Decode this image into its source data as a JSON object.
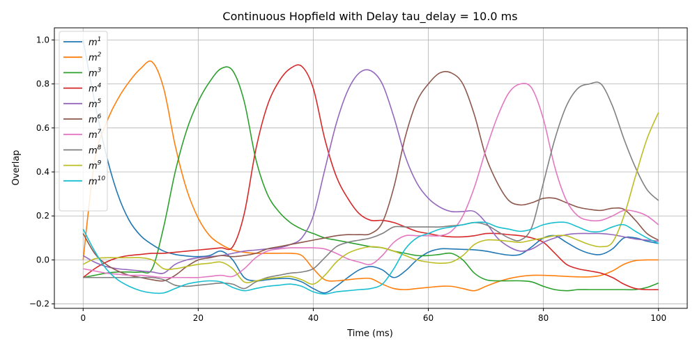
{
  "chart_data": {
    "type": "line",
    "title": "Continuous Hopfield with Delay tau_delay = 10.0 ms",
    "xlabel": "Time (ms)",
    "ylabel": "Overlap",
    "xlim": [
      -5,
      105
    ],
    "ylim": [
      -0.22,
      1.055
    ],
    "xticks": [
      0,
      20,
      40,
      60,
      80,
      100
    ],
    "yticks": [
      -0.2,
      0.0,
      0.2,
      0.4,
      0.6,
      0.8,
      1.0
    ],
    "xtick_labels": [
      "0",
      "20",
      "40",
      "60",
      "80",
      "100"
    ],
    "ytick_labels": [
      "−0.2",
      "0.0",
      "0.2",
      "0.4",
      "0.6",
      "0.8",
      "1.0"
    ],
    "grid": true,
    "legend_position": "top-left",
    "x": [
      0,
      2,
      4,
      6,
      8,
      10,
      12,
      14,
      16,
      18,
      20,
      22,
      24,
      26,
      28,
      30,
      32,
      34,
      36,
      38,
      40,
      42,
      44,
      46,
      48,
      50,
      52,
      54,
      56,
      58,
      60,
      62,
      64,
      66,
      68,
      70,
      72,
      74,
      76,
      78,
      80,
      82,
      84,
      86,
      88,
      90,
      92,
      94,
      96,
      98,
      100
    ],
    "series": [
      {
        "name": "m",
        "sup": "1",
        "color": "#1f77b4",
        "values": [
          1.0,
          0.72,
          0.48,
          0.3,
          0.18,
          0.11,
          0.07,
          0.04,
          0.025,
          0.018,
          0.015,
          0.02,
          0.04,
          0.0,
          -0.08,
          -0.095,
          -0.09,
          -0.085,
          -0.085,
          -0.1,
          -0.13,
          -0.15,
          -0.12,
          -0.08,
          -0.045,
          -0.03,
          -0.045,
          -0.08,
          -0.05,
          0.0,
          0.035,
          0.05,
          0.05,
          0.048,
          0.046,
          0.04,
          0.03,
          0.022,
          0.025,
          0.06,
          0.1,
          0.11,
          0.08,
          0.05,
          0.03,
          0.025,
          0.05,
          0.1,
          0.1,
          0.085,
          0.075
        ]
      },
      {
        "name": "m",
        "sup": "2",
        "color": "#ff7f0e",
        "values": [
          0.0,
          0.45,
          0.62,
          0.73,
          0.81,
          0.87,
          0.9,
          0.78,
          0.52,
          0.32,
          0.19,
          0.11,
          0.07,
          0.045,
          0.035,
          0.03,
          0.03,
          0.03,
          0.03,
          0.02,
          -0.04,
          -0.09,
          -0.095,
          -0.09,
          -0.085,
          -0.085,
          -0.11,
          -0.13,
          -0.135,
          -0.13,
          -0.125,
          -0.12,
          -0.12,
          -0.13,
          -0.14,
          -0.12,
          -0.1,
          -0.085,
          -0.075,
          -0.07,
          -0.07,
          -0.072,
          -0.075,
          -0.077,
          -0.077,
          -0.07,
          -0.05,
          -0.02,
          -0.003,
          0.0,
          0.0
        ]
      },
      {
        "name": "m",
        "sup": "3",
        "color": "#2ca02c",
        "values": [
          -0.08,
          -0.07,
          -0.06,
          -0.055,
          -0.055,
          -0.055,
          -0.04,
          0.15,
          0.4,
          0.59,
          0.72,
          0.81,
          0.87,
          0.86,
          0.72,
          0.46,
          0.3,
          0.22,
          0.17,
          0.14,
          0.12,
          0.1,
          0.09,
          0.08,
          0.07,
          0.06,
          0.055,
          0.04,
          0.03,
          0.02,
          0.02,
          0.025,
          0.03,
          0.0,
          -0.06,
          -0.09,
          -0.095,
          -0.095,
          -0.095,
          -0.1,
          -0.12,
          -0.135,
          -0.14,
          -0.135,
          -0.135,
          -0.135,
          -0.135,
          -0.135,
          -0.135,
          -0.125,
          -0.105
        ]
      },
      {
        "name": "m",
        "sup": "4",
        "color": "#d62728",
        "values": [
          -0.08,
          -0.04,
          -0.01,
          0.01,
          0.02,
          0.025,
          0.03,
          0.03,
          0.035,
          0.04,
          0.045,
          0.05,
          0.055,
          0.06,
          0.21,
          0.5,
          0.7,
          0.81,
          0.87,
          0.88,
          0.78,
          0.55,
          0.38,
          0.28,
          0.21,
          0.18,
          0.18,
          0.17,
          0.15,
          0.13,
          0.12,
          0.11,
          0.105,
          0.105,
          0.11,
          0.12,
          0.12,
          0.115,
          0.11,
          0.1,
          0.08,
          0.03,
          -0.02,
          -0.04,
          -0.05,
          -0.06,
          -0.08,
          -0.11,
          -0.13,
          -0.135,
          -0.135
        ]
      },
      {
        "name": "m",
        "sup": "5",
        "color": "#9467bd",
        "values": [
          0.02,
          -0.01,
          -0.03,
          -0.04,
          -0.045,
          -0.05,
          -0.055,
          -0.06,
          -0.02,
          0.0,
          0.01,
          0.015,
          0.02,
          0.03,
          0.04,
          0.045,
          0.05,
          0.055,
          0.07,
          0.1,
          0.2,
          0.41,
          0.62,
          0.77,
          0.85,
          0.86,
          0.8,
          0.65,
          0.47,
          0.35,
          0.28,
          0.24,
          0.22,
          0.22,
          0.22,
          0.17,
          0.1,
          0.06,
          0.04,
          0.05,
          0.08,
          0.1,
          0.115,
          0.12,
          0.12,
          0.12,
          0.115,
          0.105,
          0.095,
          0.09,
          0.085
        ]
      },
      {
        "name": "m",
        "sup": "6",
        "color": "#8c564b",
        "values": [
          0.12,
          0.03,
          -0.02,
          -0.05,
          -0.07,
          -0.08,
          -0.09,
          -0.095,
          -0.07,
          -0.03,
          0.0,
          0.01,
          0.02,
          0.015,
          0.02,
          0.03,
          0.05,
          0.06,
          0.07,
          0.08,
          0.09,
          0.1,
          0.11,
          0.115,
          0.115,
          0.12,
          0.17,
          0.33,
          0.56,
          0.72,
          0.8,
          0.85,
          0.85,
          0.8,
          0.66,
          0.47,
          0.35,
          0.27,
          0.25,
          0.26,
          0.28,
          0.28,
          0.26,
          0.24,
          0.23,
          0.225,
          0.235,
          0.23,
          0.18,
          0.12,
          0.09
        ]
      },
      {
        "name": "m",
        "sup": "7",
        "color": "#e377c2",
        "values": [
          -0.04,
          -0.05,
          -0.06,
          -0.065,
          -0.07,
          -0.07,
          -0.075,
          -0.08,
          -0.08,
          -0.08,
          -0.08,
          -0.075,
          -0.07,
          -0.075,
          -0.04,
          0.01,
          0.04,
          0.05,
          0.055,
          0.055,
          0.055,
          0.05,
          0.03,
          0.005,
          -0.01,
          -0.02,
          0.02,
          0.08,
          0.11,
          0.11,
          0.11,
          0.11,
          0.13,
          0.2,
          0.33,
          0.5,
          0.65,
          0.76,
          0.8,
          0.78,
          0.64,
          0.42,
          0.27,
          0.2,
          0.18,
          0.18,
          0.2,
          0.225,
          0.22,
          0.2,
          0.16
        ]
      },
      {
        "name": "m",
        "sup": "8",
        "color": "#7f7f7f",
        "values": [
          -0.08,
          -0.08,
          -0.08,
          -0.08,
          -0.08,
          -0.08,
          -0.08,
          -0.09,
          -0.115,
          -0.12,
          -0.115,
          -0.11,
          -0.105,
          -0.11,
          -0.13,
          -0.1,
          -0.08,
          -0.07,
          -0.06,
          -0.055,
          -0.04,
          0.01,
          0.06,
          0.08,
          0.09,
          0.1,
          0.12,
          0.15,
          0.15,
          0.15,
          0.15,
          0.15,
          0.155,
          0.16,
          0.17,
          0.16,
          0.13,
          0.1,
          0.09,
          0.15,
          0.35,
          0.55,
          0.7,
          0.78,
          0.8,
          0.8,
          0.7,
          0.55,
          0.42,
          0.32,
          0.27
        ]
      },
      {
        "name": "m",
        "sup": "9",
        "color": "#bcbd22",
        "values": [
          -0.02,
          0.005,
          0.01,
          0.01,
          0.01,
          0.01,
          0.0,
          -0.04,
          -0.04,
          -0.03,
          -0.02,
          -0.015,
          -0.01,
          -0.04,
          -0.1,
          -0.095,
          -0.085,
          -0.08,
          -0.075,
          -0.09,
          -0.11,
          -0.07,
          -0.01,
          0.03,
          0.05,
          0.06,
          0.055,
          0.04,
          0.02,
          0.0,
          -0.01,
          -0.015,
          -0.01,
          0.02,
          0.07,
          0.09,
          0.09,
          0.085,
          0.08,
          0.09,
          0.1,
          0.11,
          0.11,
          0.09,
          0.07,
          0.06,
          0.08,
          0.2,
          0.38,
          0.55,
          0.67
        ]
      },
      {
        "name": "m",
        "sup": "10",
        "color": "#17becf",
        "values": [
          0.14,
          0.04,
          -0.04,
          -0.09,
          -0.12,
          -0.14,
          -0.15,
          -0.15,
          -0.13,
          -0.11,
          -0.1,
          -0.095,
          -0.1,
          -0.125,
          -0.14,
          -0.13,
          -0.12,
          -0.115,
          -0.11,
          -0.12,
          -0.145,
          -0.155,
          -0.145,
          -0.14,
          -0.135,
          -0.13,
          -0.11,
          -0.04,
          0.05,
          0.1,
          0.12,
          0.14,
          0.15,
          0.16,
          0.17,
          0.17,
          0.15,
          0.14,
          0.13,
          0.14,
          0.16,
          0.17,
          0.17,
          0.15,
          0.13,
          0.13,
          0.15,
          0.16,
          0.13,
          0.1,
          0.075
        ]
      }
    ]
  }
}
